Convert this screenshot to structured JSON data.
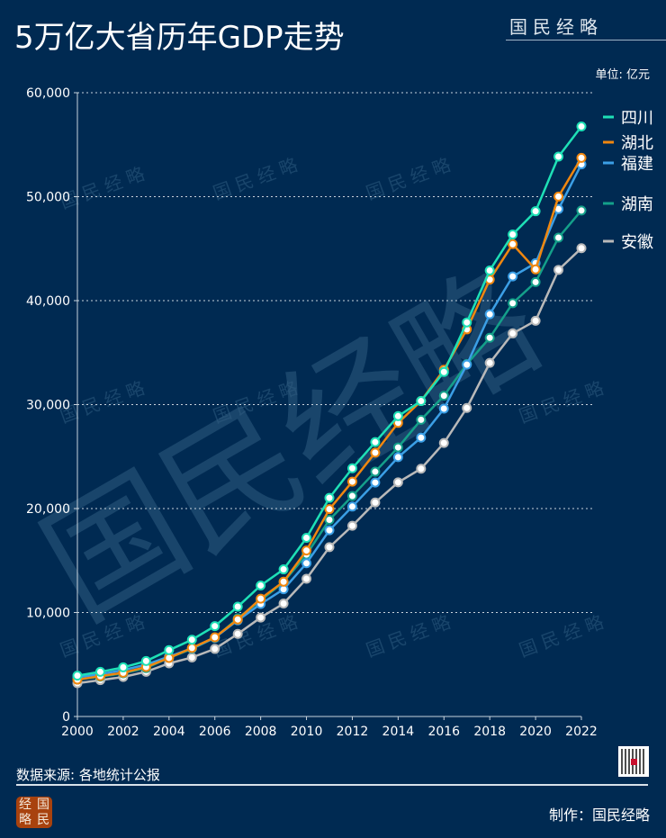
{
  "header": {
    "title": "5万亿大省历年GDP走势",
    "brand": "国民经略",
    "unit": "单位: 亿元"
  },
  "footer": {
    "source": "数据来源: 各地统计公报",
    "maker": "制作：国民经略",
    "logo_text": [
      "经",
      "国",
      "略",
      "民"
    ]
  },
  "watermark": "国民经略",
  "chart_data": {
    "type": "line",
    "title": "5万亿大省历年GDP走势",
    "ylabel": "单位: 亿元",
    "xlim": [
      2000,
      2022
    ],
    "ylim": [
      0,
      60000
    ],
    "x": [
      2000,
      2001,
      2002,
      2003,
      2004,
      2005,
      2006,
      2007,
      2008,
      2009,
      2010,
      2011,
      2012,
      2013,
      2014,
      2015,
      2016,
      2017,
      2018,
      2019,
      2020,
      2021,
      2022
    ],
    "x_ticks": [
      "2000",
      "2002",
      "2004",
      "2006",
      "2008",
      "2010",
      "2012",
      "2014",
      "2016",
      "2018",
      "2020",
      "2022"
    ],
    "y_ticks": [
      "0",
      "10,000",
      "20,000",
      "30,000",
      "40,000",
      "50,000",
      "60,000"
    ],
    "grid": true,
    "legend_position": "right",
    "series": [
      {
        "name": "四川",
        "color": "#1ee0b6",
        "values": [
          3928,
          4293,
          4725,
          5333,
          6380,
          7385,
          8690,
          10562,
          12601,
          14151,
          17185,
          21027,
          23873,
          26392,
          28891,
          30342,
          33138,
          37905,
          42902,
          46364,
          48599,
          53851,
          56750
        ]
      },
      {
        "name": "湖北",
        "color": "#f0870f",
        "values": [
          3545,
          3881,
          4213,
          4758,
          5633,
          6590,
          7617,
          9334,
          11329,
          12961,
          15968,
          19942,
          22590,
          25378,
          28242,
          30344,
          33353,
          37235,
          42022,
          45429,
          43004,
          50013,
          53735
        ]
      },
      {
        "name": "福建",
        "color": "#3b9fe6",
        "values": [
          3765,
          4073,
          4468,
          4983,
          5763,
          6555,
          7584,
          9249,
          10823,
          12237,
          14737,
          17911,
          20190,
          22504,
          24942,
          26819,
          29609,
          33842,
          38687,
          42326,
          43608,
          48810,
          53110
        ]
      },
      {
        "name": "湖南",
        "color": "#14a08a",
        "values": [
          3551,
          3831,
          4152,
          4660,
          5642,
          6511,
          7568,
          9440,
          11156,
          12930,
          15575,
          18915,
          21207,
          23545,
          25881,
          28538,
          30853,
          33903,
          36426,
          39752,
          41782,
          46063,
          48670
        ]
      },
      {
        "name": "安徽",
        "color": "#b9b9b9",
        "values": [
          3200,
          3500,
          3800,
          4300,
          5110,
          5676,
          6500,
          7941,
          9517,
          10863,
          13249,
          16285,
          18342,
          20584,
          22519,
          23831,
          26307,
          29676,
          34011,
          36846,
          38061,
          42959,
          45045
        ]
      }
    ]
  }
}
